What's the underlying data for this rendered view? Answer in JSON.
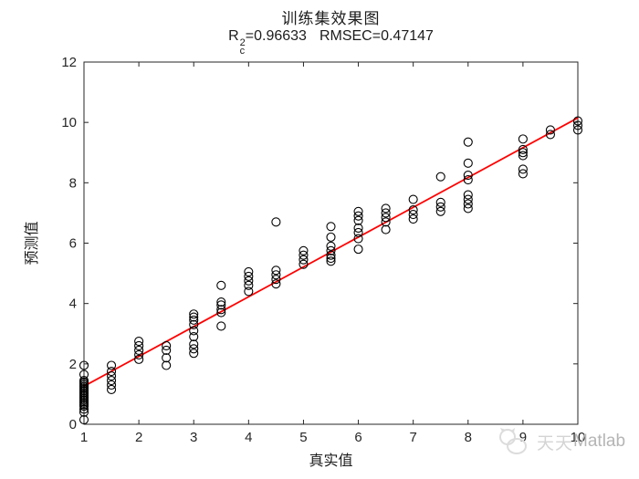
{
  "figure": {
    "title": "训练集效果图",
    "subtitle": {
      "r_symbol": "R",
      "sup": "2",
      "sub": "c",
      "r_value": "=0.96633",
      "rmsec": "RMSEC=0.47147"
    }
  },
  "watermark": {
    "cn": "天天",
    "en": "Matlab",
    "icon": "cat-logo-icon",
    "color_cn": "#d4d4d4",
    "color_en": "#b5b5b5"
  },
  "chart_data": {
    "type": "scatter",
    "title": "训练集效果图",
    "subtitle": "R_c^2=0.96633  RMSEC=0.47147",
    "r2_c": 0.96633,
    "rmsec": 0.47147,
    "xlabel": "真实值",
    "ylabel": "预测值",
    "xlim": [
      1,
      10
    ],
    "ylim": [
      0,
      12
    ],
    "xticks": [
      1,
      2,
      3,
      4,
      5,
      6,
      7,
      8,
      9,
      10
    ],
    "yticks": [
      0,
      2,
      4,
      6,
      8,
      10,
      12
    ],
    "grid": false,
    "legend": null,
    "axis_color": "#262626",
    "marker": {
      "shape": "open-circle",
      "color": "#000000",
      "radius": 4.5,
      "stroke_width": 1.1
    },
    "fit_line": {
      "color": "#ff0000",
      "width": 1.8,
      "x": [
        1,
        10
      ],
      "y": [
        1.26,
        10.15
      ]
    },
    "series": [
      {
        "name": "training-samples",
        "points": [
          {
            "x": 1.0,
            "y": [
              0.15,
              0.4,
              0.5,
              0.6,
              0.65,
              0.7,
              0.75,
              0.8,
              0.85,
              0.9,
              0.95,
              1.0,
              1.05,
              1.1,
              1.15,
              1.2,
              1.25,
              1.3,
              1.35,
              1.4,
              1.45,
              1.65,
              1.95
            ]
          },
          {
            "x": 1.5,
            "y": [
              1.15,
              1.3,
              1.45,
              1.6,
              1.75,
              1.95
            ]
          },
          {
            "x": 2.0,
            "y": [
              2.15,
              2.3,
              2.45,
              2.6,
              2.75
            ]
          },
          {
            "x": 2.5,
            "y": [
              1.95,
              2.2,
              2.45,
              2.6
            ]
          },
          {
            "x": 3.0,
            "y": [
              2.35,
              2.5,
              2.65,
              2.9,
              3.1,
              3.3,
              3.45,
              3.55,
              3.65
            ]
          },
          {
            "x": 3.5,
            "y": [
              3.25,
              3.7,
              3.8,
              3.95,
              4.05,
              4.6
            ]
          },
          {
            "x": 4.0,
            "y": [
              4.4,
              4.6,
              4.75,
              4.9,
              5.05
            ]
          },
          {
            "x": 4.5,
            "y": [
              4.65,
              4.8,
              4.95,
              5.1,
              6.7
            ]
          },
          {
            "x": 5.0,
            "y": [
              5.3,
              5.45,
              5.6,
              5.75
            ]
          },
          {
            "x": 5.5,
            "y": [
              5.4,
              5.5,
              5.6,
              5.75,
              5.9,
              6.2,
              6.55
            ]
          },
          {
            "x": 6.0,
            "y": [
              5.8,
              6.15,
              6.35,
              6.5,
              6.75,
              6.9,
              7.05
            ]
          },
          {
            "x": 6.5,
            "y": [
              6.45,
              6.7,
              6.85,
              7.0,
              7.15
            ]
          },
          {
            "x": 7.0,
            "y": [
              6.8,
              6.95,
              7.1,
              7.45
            ]
          },
          {
            "x": 7.5,
            "y": [
              7.05,
              7.2,
              7.35,
              8.2
            ]
          },
          {
            "x": 8.0,
            "y": [
              7.15,
              7.3,
              7.45,
              7.6,
              8.1,
              8.25,
              8.65,
              9.35
            ]
          },
          {
            "x": 9.0,
            "y": [
              8.3,
              8.45,
              8.9,
              9.0,
              9.1,
              9.45
            ]
          },
          {
            "x": 9.5,
            "y": [
              9.6,
              9.75
            ]
          },
          {
            "x": 10.0,
            "y": [
              9.75,
              9.9,
              10.05
            ]
          }
        ]
      }
    ]
  }
}
